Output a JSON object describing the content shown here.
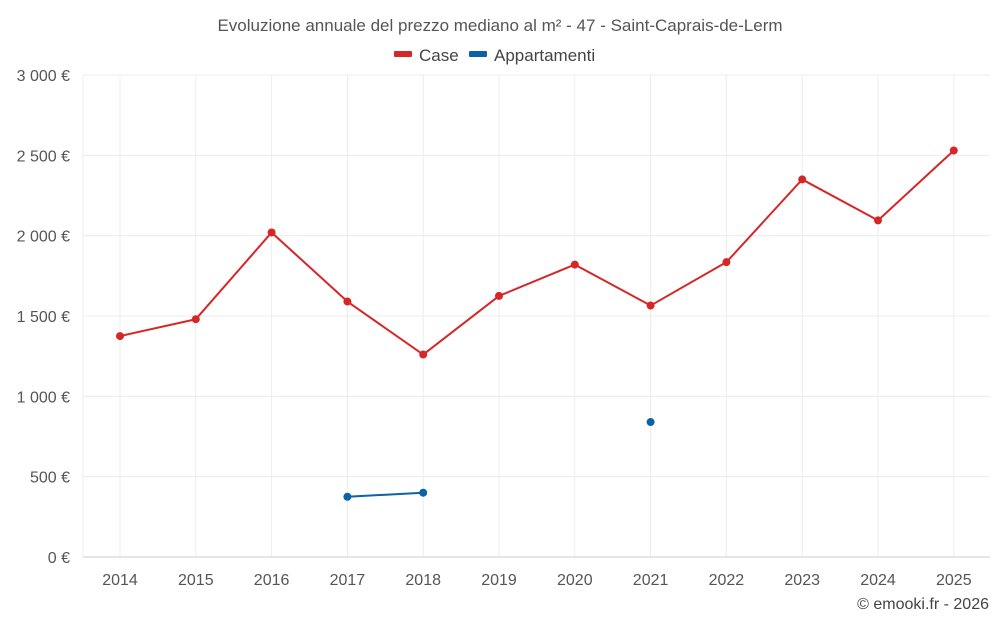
{
  "chart_data": {
    "type": "line",
    "title": "Evoluzione annuale del prezzo mediano al m² - 47 - Saint-Caprais-de-Lerm",
    "categories": [
      "2014",
      "2015",
      "2016",
      "2017",
      "2018",
      "2019",
      "2020",
      "2021",
      "2022",
      "2023",
      "2024",
      "2025"
    ],
    "series": [
      {
        "name": "Case",
        "color": "#d62728",
        "values": [
          1375,
          1480,
          2020,
          1590,
          1260,
          1625,
          1820,
          1565,
          1835,
          2350,
          2095,
          2530
        ]
      },
      {
        "name": "Appartamenti",
        "color": "#0b62a4",
        "values": [
          null,
          null,
          null,
          375,
          400,
          null,
          null,
          840,
          null,
          null,
          null,
          null
        ]
      }
    ],
    "y_ticks": [
      {
        "value": 0,
        "label": "0 €"
      },
      {
        "value": 500,
        "label": "500 €"
      },
      {
        "value": 1000,
        "label": "1 000 €"
      },
      {
        "value": 1500,
        "label": "1 500 €"
      },
      {
        "value": 2000,
        "label": "2 000 €"
      },
      {
        "value": 2500,
        "label": "2 500 €"
      },
      {
        "value": 3000,
        "label": "3 000 €"
      }
    ],
    "ylim": [
      0,
      3000
    ],
    "xlabel": "",
    "ylabel": "",
    "grid": true,
    "legend": "top-center",
    "credit": "© emooki.fr - 2026"
  }
}
